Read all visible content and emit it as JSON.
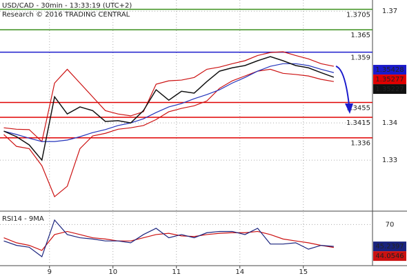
{
  "chart_data": [
    {
      "type": "line",
      "title": "USD/CAD - 30min - 13:33:19 (UTC+2)",
      "subtitle": "Research © 2016 TRADING CENTRAL",
      "x": [
        0.28,
        0.48,
        0.68,
        0.88,
        1.08,
        1.28,
        1.48,
        1.68,
        1.88,
        2.08,
        2.28,
        2.48,
        2.68,
        2.88,
        3.08,
        3.28,
        3.48,
        3.68,
        3.88,
        4.08,
        4.28,
        4.48,
        4.68,
        4.88,
        5.08,
        5.28,
        5.48
      ],
      "xlim": [
        0.22,
        6.09
      ],
      "ylim": [
        1.3165,
        1.373
      ],
      "yticks": [
        1.37,
        1.34,
        1.33
      ],
      "grid": true,
      "series": [
        {
          "color": "#cc1111",
          "values": [
            1.3387,
            1.3383,
            1.3382,
            1.335,
            1.3507,
            1.3544,
            1.3507,
            1.347,
            1.3433,
            1.3424,
            1.3419,
            1.343,
            1.3504,
            1.3513,
            1.3515,
            1.3522,
            1.3544,
            1.355,
            1.3559,
            1.3567,
            1.3581,
            1.3589,
            1.3591,
            1.3581,
            1.3572,
            1.3559,
            1.3552
          ]
        },
        {
          "color": "#cc1111",
          "values": [
            1.3369,
            1.3337,
            1.3331,
            1.3285,
            1.3202,
            1.323,
            1.3331,
            1.3365,
            1.3372,
            1.3383,
            1.3387,
            1.3393,
            1.3409,
            1.343,
            1.3439,
            1.3446,
            1.3459,
            1.3493,
            1.3513,
            1.3526,
            1.3539,
            1.3544,
            1.3533,
            1.353,
            1.3526,
            1.3517,
            1.3511
          ]
        },
        {
          "color": "#2233bb",
          "values": [
            1.3378,
            1.3369,
            1.3359,
            1.335,
            1.335,
            1.3354,
            1.3363,
            1.3374,
            1.3382,
            1.3393,
            1.34,
            1.3411,
            1.3428,
            1.3443,
            1.3452,
            1.3465,
            1.3476,
            1.3489,
            1.3507,
            1.3522,
            1.3539,
            1.3552,
            1.3559,
            1.3559,
            1.3554,
            1.3544,
            1.3535
          ]
        },
        {
          "color": "#111111",
          "values": [
            1.3378,
            1.3363,
            1.3341,
            1.33,
            1.347,
            1.3424,
            1.3443,
            1.3433,
            1.3404,
            1.3406,
            1.34,
            1.3433,
            1.3489,
            1.3461,
            1.3485,
            1.348,
            1.3511,
            1.3539,
            1.3548,
            1.3554,
            1.3567,
            1.3578,
            1.3567,
            1.3554,
            1.3548,
            1.3535,
            1.35227
          ]
        }
      ],
      "levels": [
        {
          "value": 1.3705,
          "color": "#3a8f1a"
        },
        {
          "value": 1.365,
          "color": "#3a8f1a"
        },
        {
          "value": 1.359,
          "color": "#1a1acc"
        },
        {
          "value": 1.3455,
          "color": "#e00000"
        },
        {
          "value": 1.3415,
          "color": "#e00000"
        },
        {
          "value": 1.336,
          "color": "#e00000"
        }
      ],
      "price_labels": [
        {
          "value": 1.35428,
          "color": "#1a1acc"
        },
        {
          "value": 1.35277,
          "color": "#e00000"
        },
        {
          "value": 1.35227,
          "color": "#111111"
        }
      ]
    },
    {
      "type": "line",
      "title": "RSI14 - 9MA",
      "x": [
        0.28,
        0.48,
        0.68,
        0.88,
        1.08,
        1.28,
        1.48,
        1.68,
        1.88,
        2.08,
        2.28,
        2.48,
        2.68,
        2.88,
        3.08,
        3.28,
        3.48,
        3.68,
        3.88,
        4.08,
        4.28,
        4.48,
        4.68,
        4.88,
        5.08,
        5.28,
        5.48
      ],
      "xlim": [
        0.22,
        6.09
      ],
      "xticks": [
        {
          "value": 1,
          "label": "9"
        },
        {
          "value": 2,
          "label": "10"
        },
        {
          "value": 3,
          "label": "11"
        },
        {
          "value": 4,
          "label": "14"
        },
        {
          "value": 5,
          "label": "15"
        }
      ],
      "ylim": [
        23.5,
        83.5
      ],
      "yticks": [
        70
      ],
      "grid": true,
      "series": [
        {
          "color": "#cc1111",
          "values": [
            55,
            49.3,
            46.4,
            40.7,
            58.6,
            62.1,
            58.6,
            55,
            53.6,
            51.4,
            51.4,
            55,
            58.6,
            60,
            57.1,
            56.4,
            58.6,
            60,
            60.7,
            60.7,
            62.1,
            58.6,
            53.6,
            51.4,
            49.3,
            46.4,
            44.0546
          ]
        },
        {
          "color": "#1a237e",
          "values": [
            51.4,
            46.4,
            44.3,
            33.6,
            75,
            58.6,
            55,
            53.6,
            51.4,
            51.4,
            49.3,
            58.6,
            65.7,
            55,
            58.6,
            55,
            60.7,
            62.1,
            62.1,
            58.6,
            65.7,
            47.9,
            47.9,
            49.3,
            42.1,
            46.4,
            45.2397
          ]
        }
      ]
    }
  ]
}
